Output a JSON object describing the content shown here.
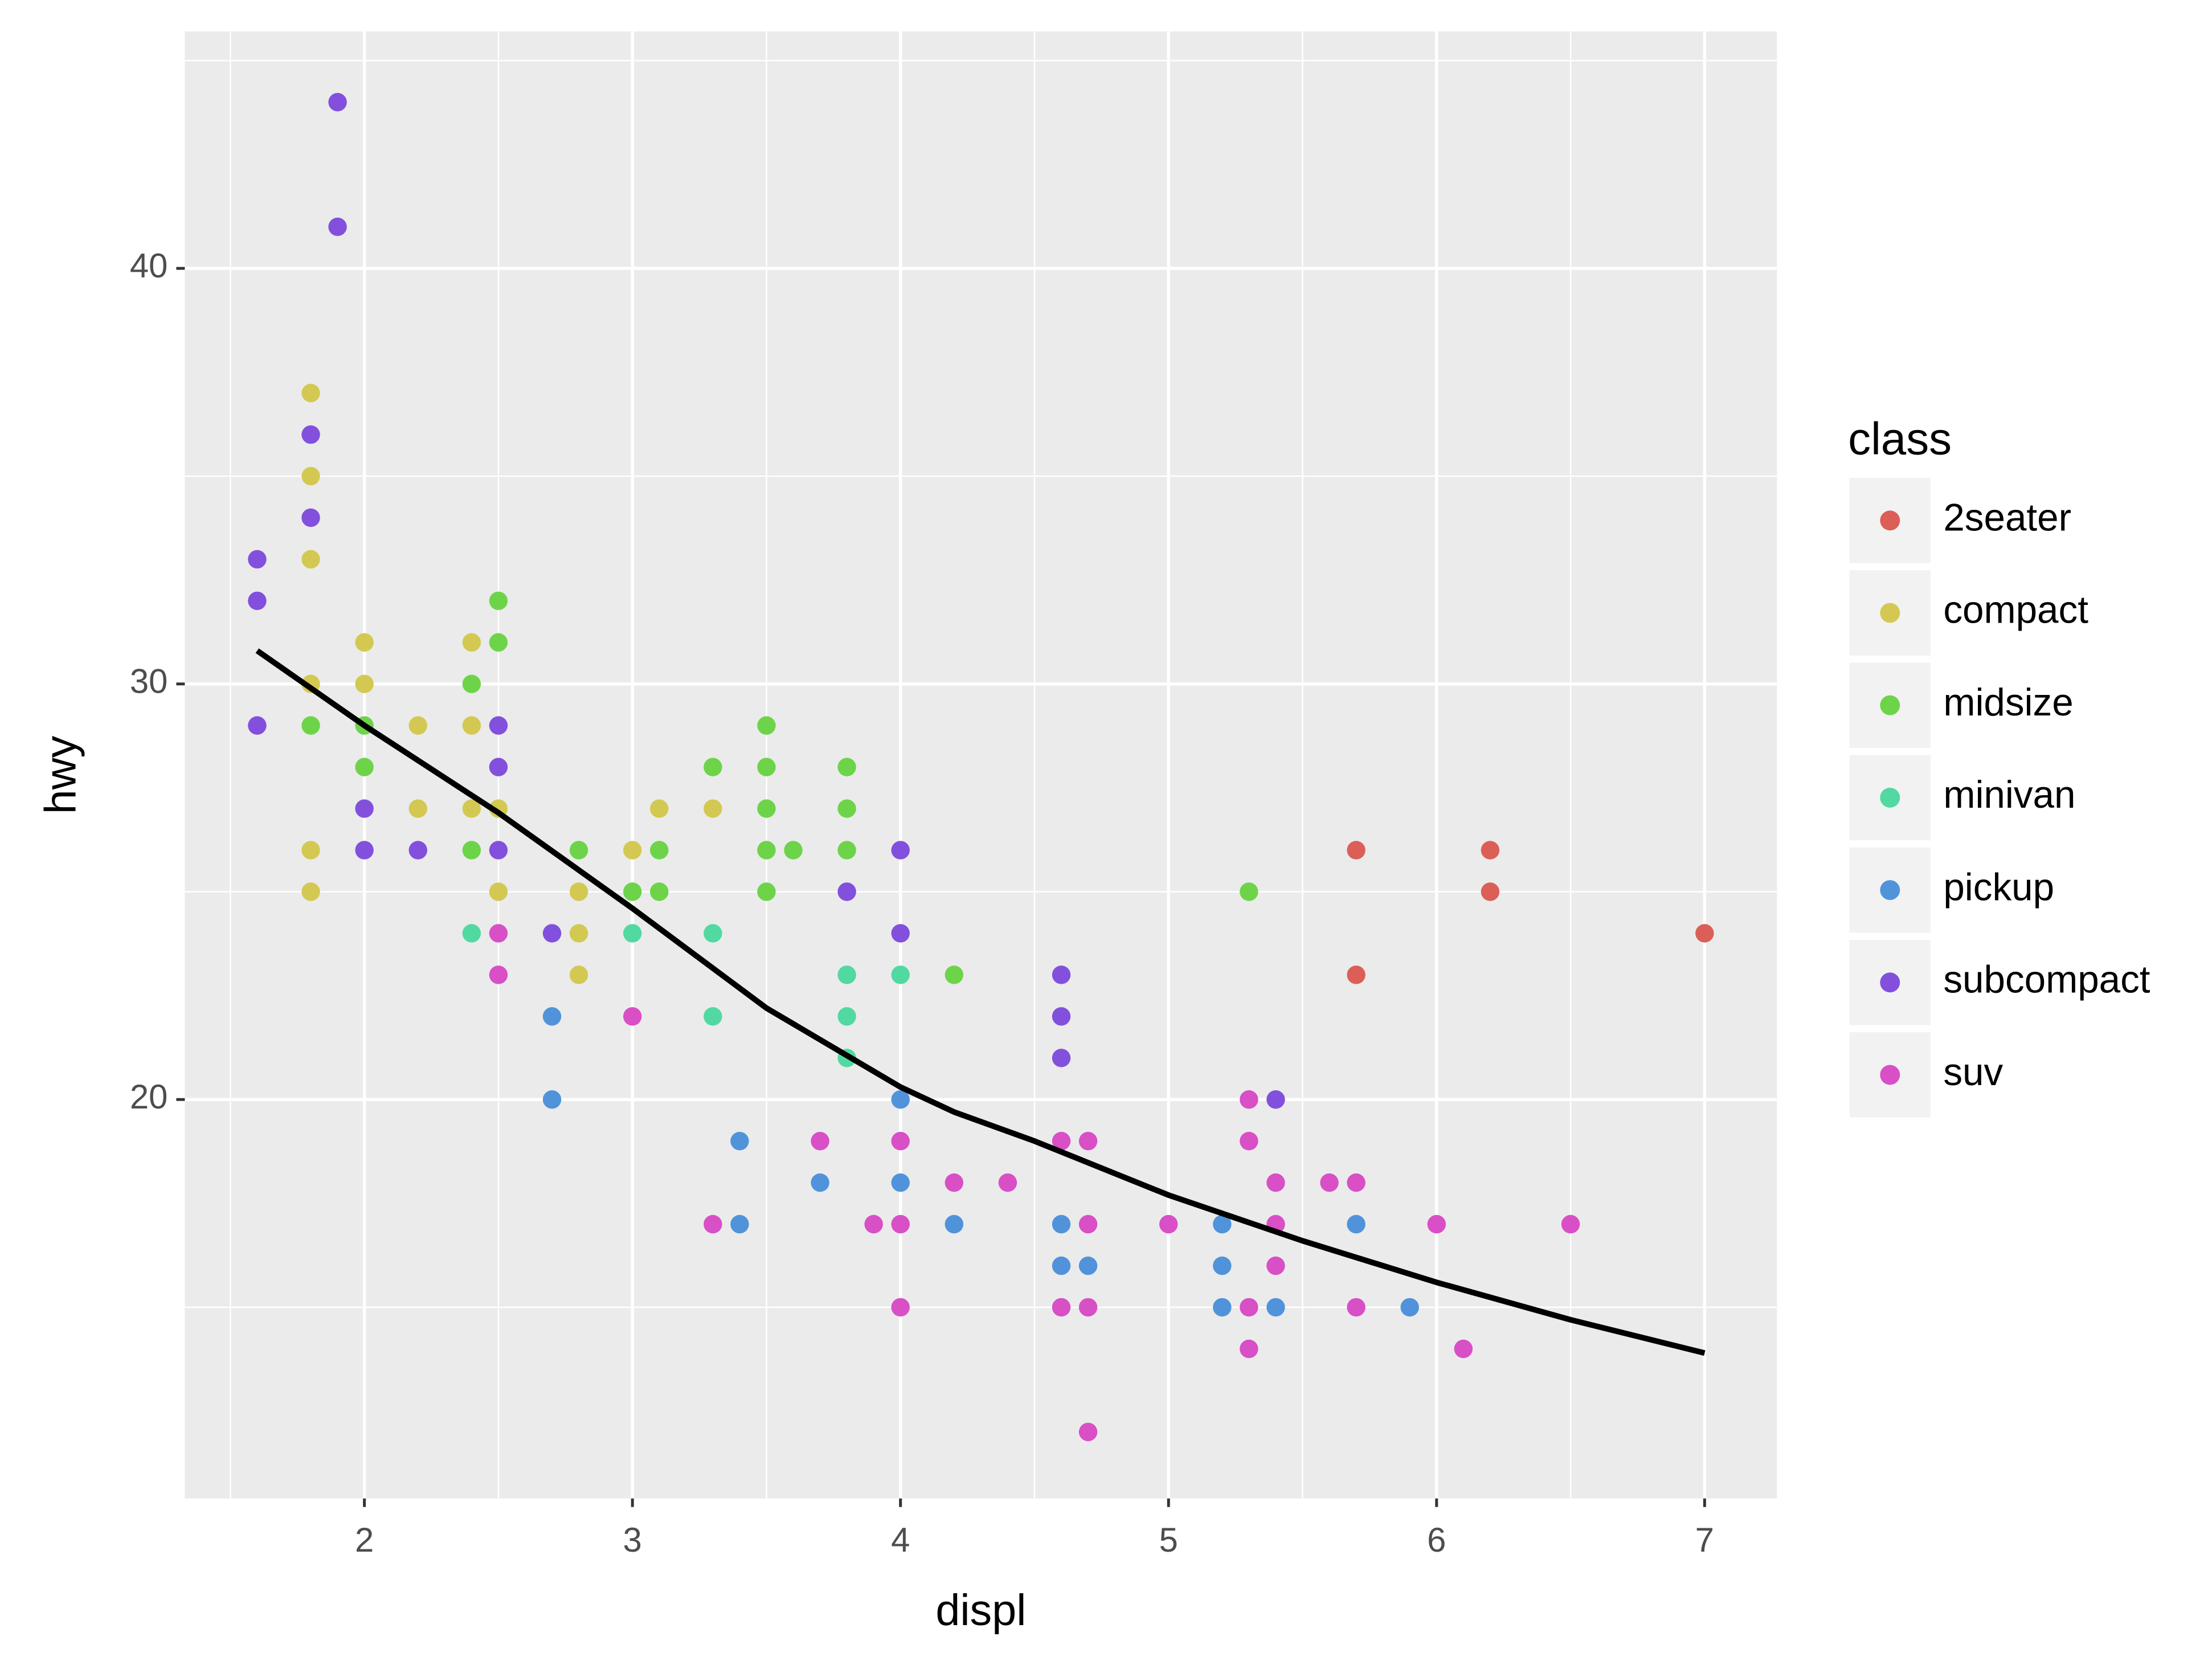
{
  "chart_data": {
    "type": "scatter",
    "x_label": "displ",
    "y_label": "hwy",
    "legend_title": "class",
    "xlim": [
      1.33,
      7.27
    ],
    "ylim": [
      10.4,
      45.7
    ],
    "xticks": [
      2,
      3,
      4,
      5,
      6,
      7
    ],
    "yticks": [
      20,
      30,
      40
    ],
    "grid": true,
    "legend": "right",
    "series": [
      {
        "name": "2seater",
        "color": "#db5f57",
        "x": [
          5.7,
          5.7,
          6.2,
          6.2,
          7.0
        ],
        "values": [
          26,
          23,
          26,
          25,
          24
        ]
      },
      {
        "name": "compact",
        "color": "#d3c952",
        "x": [
          1.8,
          1.8,
          1.8,
          1.8,
          1.8,
          1.8,
          2.0,
          2.0,
          2.2,
          2.2,
          2.4,
          2.4,
          2.4,
          2.5,
          2.5,
          2.8,
          2.8,
          2.8,
          3.0,
          3.1,
          3.3
        ],
        "values": [
          37,
          35,
          33,
          30,
          26,
          25,
          31,
          30,
          29,
          27,
          31,
          29,
          27,
          27,
          25,
          25,
          24,
          23,
          26,
          27,
          27
        ]
      },
      {
        "name": "midsize",
        "color": "#6dd44a",
        "x": [
          1.8,
          2.0,
          2.0,
          2.4,
          2.4,
          2.5,
          2.5,
          2.8,
          3.0,
          3.1,
          3.1,
          3.3,
          3.5,
          3.5,
          3.5,
          3.5,
          3.5,
          3.6,
          3.8,
          3.8,
          3.8,
          4.2,
          5.3
        ],
        "values": [
          29,
          29,
          28,
          30,
          26,
          32,
          31,
          26,
          25,
          26,
          25,
          28,
          29,
          28,
          27,
          26,
          25,
          26,
          28,
          27,
          26,
          23,
          25
        ]
      },
      {
        "name": "minivan",
        "color": "#51d9a1",
        "x": [
          2.4,
          3.0,
          3.3,
          3.3,
          3.8,
          3.8,
          3.8,
          4.0
        ],
        "values": [
          24,
          24,
          24,
          22,
          23,
          22,
          21,
          23
        ]
      },
      {
        "name": "pickup",
        "color": "#5093da",
        "x": [
          2.7,
          2.7,
          3.4,
          3.4,
          3.7,
          4.0,
          4.0,
          4.2,
          4.6,
          4.6,
          4.7,
          5.2,
          5.2,
          5.2,
          5.4,
          5.7,
          5.9
        ],
        "values": [
          22,
          20,
          19,
          17,
          18,
          20,
          18,
          17,
          17,
          16,
          16,
          17,
          16,
          15,
          15,
          17,
          15
        ]
      },
      {
        "name": "subcompact",
        "color": "#8250dc",
        "x": [
          1.6,
          1.6,
          1.6,
          1.8,
          1.8,
          1.9,
          1.9,
          2.0,
          2.0,
          2.2,
          2.5,
          2.5,
          2.5,
          2.7,
          3.8,
          4.0,
          4.0,
          4.6,
          4.6,
          4.6,
          5.4
        ],
        "values": [
          33,
          32,
          29,
          36,
          34,
          44,
          41,
          27,
          26,
          26,
          29,
          28,
          26,
          24,
          25,
          26,
          24,
          23,
          22,
          21,
          20
        ]
      },
      {
        "name": "suv",
        "color": "#d84fc6",
        "x": [
          2.5,
          2.5,
          3.0,
          3.3,
          3.7,
          3.9,
          4.0,
          4.0,
          4.0,
          4.2,
          4.4,
          4.6,
          4.6,
          4.7,
          4.7,
          4.7,
          4.7,
          5.0,
          5.3,
          5.3,
          5.3,
          5.3,
          5.4,
          5.4,
          5.4,
          5.6,
          5.7,
          5.7,
          6.0,
          6.1,
          6.5
        ],
        "values": [
          24,
          23,
          22,
          17,
          19,
          17,
          19,
          17,
          15,
          18,
          18,
          19,
          15,
          19,
          17,
          15,
          12,
          17,
          20,
          19,
          15,
          14,
          18,
          17,
          16,
          18,
          18,
          15,
          17,
          14,
          17
        ]
      }
    ],
    "smooth": {
      "color": "#000000",
      "x": [
        1.6,
        2.0,
        2.5,
        3.0,
        3.5,
        4.0,
        4.2,
        4.5,
        5.0,
        5.5,
        6.0,
        6.5,
        7.0
      ],
      "values": [
        30.8,
        29.0,
        26.9,
        24.6,
        22.2,
        20.3,
        19.7,
        19.0,
        17.7,
        16.6,
        15.6,
        14.7,
        13.9
      ]
    }
  }
}
